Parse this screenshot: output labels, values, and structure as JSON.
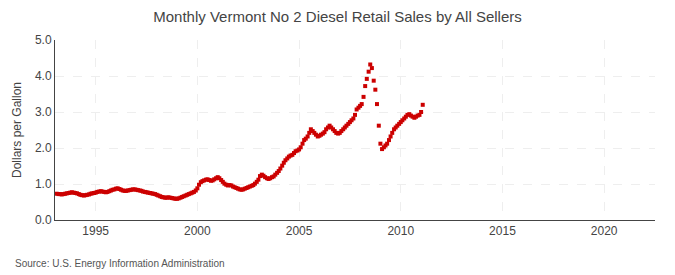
{
  "chart_data": {
    "type": "scatter",
    "title": "Monthly Vermont No 2 Diesel Retail Sales by All Sellers",
    "ylabel": "Dollars per Gallon",
    "annotations": [
      "Source: U.S. Energy Information Administration"
    ],
    "color": "#cc0000",
    "marker": "square",
    "grid": true,
    "xlim": [
      1993.0,
      2022.5
    ],
    "ylim": [
      0.0,
      5.0
    ],
    "xticks": [
      1995,
      2000,
      2005,
      2010,
      2015,
      2020
    ],
    "yticks": [
      {
        "value": 0.0,
        "label": "0.0"
      },
      {
        "value": 1.0,
        "label": "1.0"
      },
      {
        "value": 2.0,
        "label": "2.0"
      },
      {
        "value": 3.0,
        "label": "3.0"
      },
      {
        "value": 4.0,
        "label": "4.0"
      },
      {
        "value": 5.0,
        "label": "5.0"
      }
    ],
    "x": [
      1993.08,
      1993.17,
      1993.25,
      1993.33,
      1993.42,
      1993.5,
      1993.58,
      1993.67,
      1993.75,
      1993.83,
      1993.92,
      1994.0,
      1994.08,
      1994.17,
      1994.25,
      1994.33,
      1994.42,
      1994.5,
      1994.58,
      1994.67,
      1994.75,
      1994.83,
      1994.92,
      1995.0,
      1995.08,
      1995.17,
      1995.25,
      1995.33,
      1995.42,
      1995.5,
      1995.58,
      1995.67,
      1995.75,
      1995.83,
      1995.92,
      1996.0,
      1996.08,
      1996.17,
      1996.25,
      1996.33,
      1996.42,
      1996.5,
      1996.58,
      1996.67,
      1996.75,
      1996.83,
      1996.92,
      1997.0,
      1997.08,
      1997.17,
      1997.25,
      1997.33,
      1997.42,
      1997.5,
      1997.58,
      1997.67,
      1997.75,
      1997.83,
      1997.92,
      1998.0,
      1998.08,
      1998.17,
      1998.25,
      1998.33,
      1998.42,
      1998.5,
      1998.58,
      1998.67,
      1998.75,
      1998.83,
      1998.92,
      1999.0,
      1999.08,
      1999.17,
      1999.25,
      1999.33,
      1999.42,
      1999.5,
      1999.58,
      1999.67,
      1999.75,
      1999.83,
      1999.92,
      2000.0,
      2000.08,
      2000.17,
      2000.25,
      2000.33,
      2000.42,
      2000.5,
      2000.58,
      2000.67,
      2000.75,
      2000.83,
      2000.92,
      2001.0,
      2001.08,
      2001.17,
      2001.25,
      2001.33,
      2001.42,
      2001.5,
      2001.58,
      2001.67,
      2001.75,
      2001.83,
      2001.92,
      2002.0,
      2002.08,
      2002.17,
      2002.25,
      2002.33,
      2002.42,
      2002.5,
      2002.58,
      2002.67,
      2002.75,
      2002.83,
      2002.92,
      2003.0,
      2003.08,
      2003.17,
      2003.25,
      2003.33,
      2003.42,
      2003.5,
      2003.58,
      2003.67,
      2003.75,
      2003.83,
      2003.92,
      2004.0,
      2004.08,
      2004.17,
      2004.25,
      2004.33,
      2004.42,
      2004.5,
      2004.58,
      2004.67,
      2004.75,
      2004.83,
      2004.92,
      2005.0,
      2005.08,
      2005.17,
      2005.25,
      2005.33,
      2005.42,
      2005.5,
      2005.58,
      2005.67,
      2005.75,
      2005.83,
      2005.92,
      2006.0,
      2006.08,
      2006.17,
      2006.25,
      2006.33,
      2006.42,
      2006.5,
      2006.58,
      2006.67,
      2006.75,
      2006.83,
      2006.92,
      2007.0,
      2007.08,
      2007.17,
      2007.25,
      2007.33,
      2007.42,
      2007.5,
      2007.58,
      2007.67,
      2007.75,
      2007.83,
      2007.92,
      2008.0,
      2008.08,
      2008.17,
      2008.25,
      2008.33,
      2008.42,
      2008.5,
      2008.58,
      2008.67,
      2008.75,
      2008.83,
      2008.92,
      2009.0,
      2009.08,
      2009.17,
      2009.25,
      2009.33,
      2009.42,
      2009.5,
      2009.58,
      2009.67,
      2009.75,
      2009.83,
      2009.92,
      2010.0,
      2010.08,
      2010.17,
      2010.25,
      2010.33,
      2010.42,
      2010.5,
      2010.58,
      2010.67,
      2010.75,
      2010.83,
      2010.92,
      2011.0,
      2011.08
    ],
    "values": [
      0.73,
      0.72,
      0.72,
      0.71,
      0.72,
      0.73,
      0.74,
      0.75,
      0.76,
      0.77,
      0.76,
      0.75,
      0.74,
      0.72,
      0.7,
      0.69,
      0.68,
      0.69,
      0.7,
      0.71,
      0.73,
      0.74,
      0.75,
      0.76,
      0.78,
      0.79,
      0.8,
      0.79,
      0.78,
      0.77,
      0.78,
      0.8,
      0.82,
      0.84,
      0.85,
      0.87,
      0.88,
      0.86,
      0.84,
      0.82,
      0.81,
      0.81,
      0.82,
      0.83,
      0.84,
      0.85,
      0.85,
      0.84,
      0.83,
      0.82,
      0.81,
      0.79,
      0.78,
      0.77,
      0.76,
      0.75,
      0.74,
      0.73,
      0.72,
      0.7,
      0.68,
      0.66,
      0.64,
      0.63,
      0.62,
      0.62,
      0.63,
      0.62,
      0.61,
      0.6,
      0.59,
      0.59,
      0.6,
      0.62,
      0.64,
      0.66,
      0.68,
      0.7,
      0.72,
      0.74,
      0.76,
      0.78,
      0.82,
      0.88,
      0.98,
      1.05,
      1.08,
      1.1,
      1.12,
      1.13,
      1.11,
      1.09,
      1.1,
      1.13,
      1.16,
      1.19,
      1.16,
      1.11,
      1.06,
      1.01,
      0.98,
      0.96,
      0.97,
      0.96,
      0.93,
      0.91,
      0.89,
      0.87,
      0.85,
      0.84,
      0.85,
      0.87,
      0.89,
      0.91,
      0.93,
      0.95,
      0.97,
      1.01,
      1.06,
      1.12,
      1.22,
      1.26,
      1.23,
      1.19,
      1.16,
      1.14,
      1.16,
      1.19,
      1.21,
      1.26,
      1.31,
      1.36,
      1.43,
      1.51,
      1.59,
      1.66,
      1.71,
      1.76,
      1.79,
      1.81,
      1.86,
      1.91,
      1.93,
      1.96,
      2.02,
      2.12,
      2.22,
      2.26,
      2.32,
      2.42,
      2.52,
      2.47,
      2.42,
      2.37,
      2.32,
      2.34,
      2.37,
      2.4,
      2.44,
      2.52,
      2.57,
      2.62,
      2.57,
      2.52,
      2.47,
      2.42,
      2.4,
      2.42,
      2.47,
      2.52,
      2.57,
      2.62,
      2.67,
      2.72,
      2.77,
      2.82,
      2.92,
      3.07,
      3.12,
      3.17,
      3.22,
      3.42,
      3.72,
      3.92,
      4.12,
      4.32,
      4.22,
      3.87,
      3.62,
      3.22,
      2.62,
      2.12,
      1.97,
      2.02,
      2.07,
      2.12,
      2.22,
      2.32,
      2.42,
      2.52,
      2.57,
      2.62,
      2.67,
      2.72,
      2.77,
      2.82,
      2.87,
      2.92,
      2.94,
      2.9,
      2.87,
      2.84,
      2.87,
      2.9,
      2.92,
      3.0,
      3.2
    ]
  }
}
